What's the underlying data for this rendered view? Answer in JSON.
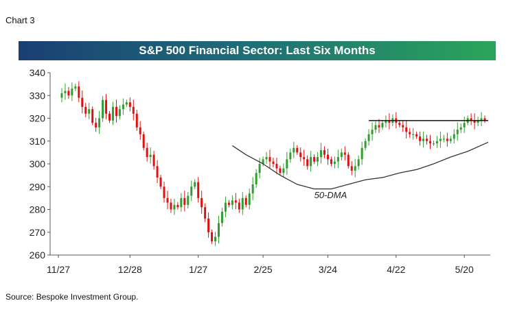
{
  "header": {
    "chart_label": "Chart 3"
  },
  "footer": {
    "source": "Source: Bespoke Investment Group."
  },
  "colors": {
    "up": "#2f9e2f",
    "down": "#e01010",
    "title_start": "#1a3f73",
    "title_end": "#2aa55a",
    "dma": "#333333"
  },
  "chart_data": {
    "type": "candlestick",
    "title": "S&P 500 Financial Sector: Last Six Months",
    "ylim": [
      260,
      340
    ],
    "yticks": [
      260,
      270,
      280,
      290,
      300,
      310,
      320,
      330,
      340
    ],
    "xticks": [
      {
        "label": "11/27",
        "at": 0
      },
      {
        "label": "12/28",
        "at": 21
      },
      {
        "label": "1/27",
        "at": 41
      },
      {
        "label": "2/25",
        "at": 60
      },
      {
        "label": "3/24",
        "at": 79
      },
      {
        "label": "4/22",
        "at": 99
      },
      {
        "label": "5/20",
        "at": 119
      }
    ],
    "x_count": 126,
    "closes": [
      329,
      331,
      332,
      330,
      333,
      334,
      329,
      325,
      322,
      324,
      318,
      316,
      320,
      328,
      322,
      319,
      325,
      321,
      324,
      326,
      327,
      325,
      322,
      316,
      313,
      307,
      303,
      304,
      299,
      294,
      290,
      285,
      283,
      280,
      282,
      281,
      285,
      282,
      286,
      290,
      292,
      285,
      281,
      276,
      270,
      266,
      268,
      274,
      279,
      283,
      282,
      284,
      283,
      280,
      285,
      282,
      287,
      291,
      296,
      300,
      302,
      303,
      301,
      300,
      298,
      296,
      298,
      302,
      305,
      307,
      305,
      303,
      302,
      299,
      303,
      301,
      303,
      306,
      304,
      302,
      300,
      301,
      303,
      305,
      304,
      299,
      297,
      299,
      302,
      307,
      310,
      313,
      315,
      317,
      316,
      318,
      319,
      318,
      320,
      318,
      317,
      316,
      314,
      313,
      313,
      312,
      310,
      311,
      310,
      309,
      309,
      310,
      311,
      311,
      310,
      311,
      313,
      315,
      316,
      318,
      320,
      319,
      318,
      319,
      320,
      319
    ],
    "resistance": {
      "y": 319,
      "from": 91,
      "to": 126
    },
    "moving_average": {
      "label": "50-DMA",
      "label_at": [
        75,
        285
      ],
      "points": [
        [
          51,
          308
        ],
        [
          55,
          304
        ],
        [
          60,
          300
        ],
        [
          65,
          295
        ],
        [
          70,
          291
        ],
        [
          75,
          289
        ],
        [
          80,
          289
        ],
        [
          85,
          291
        ],
        [
          90,
          293
        ],
        [
          95,
          294
        ],
        [
          100,
          296
        ],
        [
          105,
          297.5
        ],
        [
          110,
          300
        ],
        [
          115,
          303
        ],
        [
          120,
          305.5
        ],
        [
          126,
          309.5
        ]
      ]
    }
  }
}
